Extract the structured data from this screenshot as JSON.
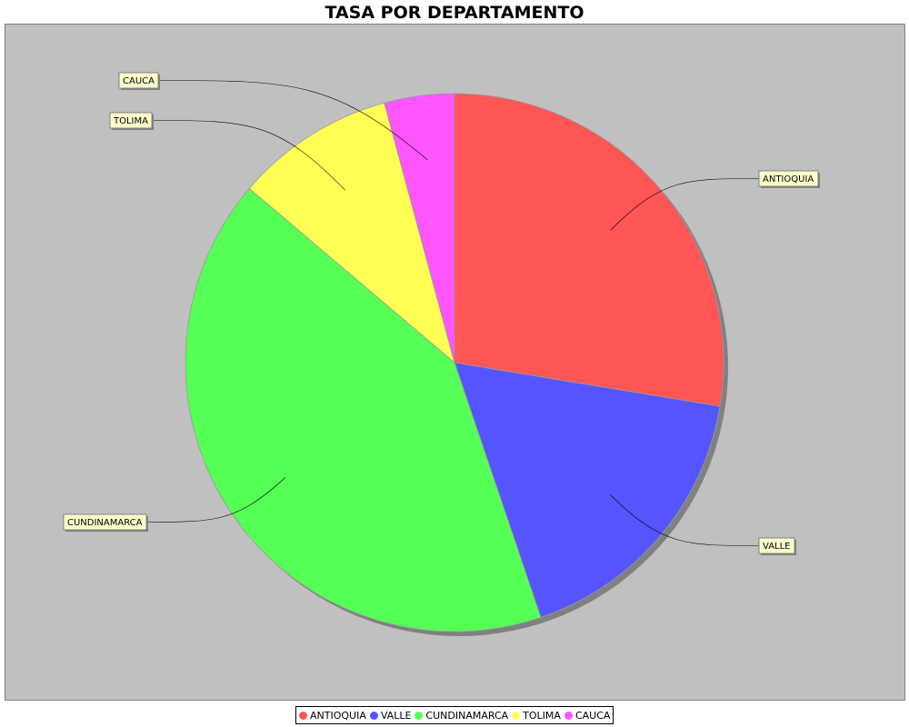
{
  "chart_data": {
    "type": "pie",
    "title": "TASA POR DEPARTAMENTO",
    "categories": [
      "ANTIOQUIA",
      "VALLE",
      "CUNDINAMARCA",
      "TOLIMA",
      "CAUCA"
    ],
    "values": [
      27.6,
      17.2,
      41.4,
      9.6,
      4.2
    ],
    "colors": [
      "#ff5555",
      "#5555ff",
      "#55ff55",
      "#ffff55",
      "#ff55ff"
    ],
    "background": "#c0c0c0",
    "label_box_color": "#ffffcc",
    "legend_position": "bottom"
  }
}
